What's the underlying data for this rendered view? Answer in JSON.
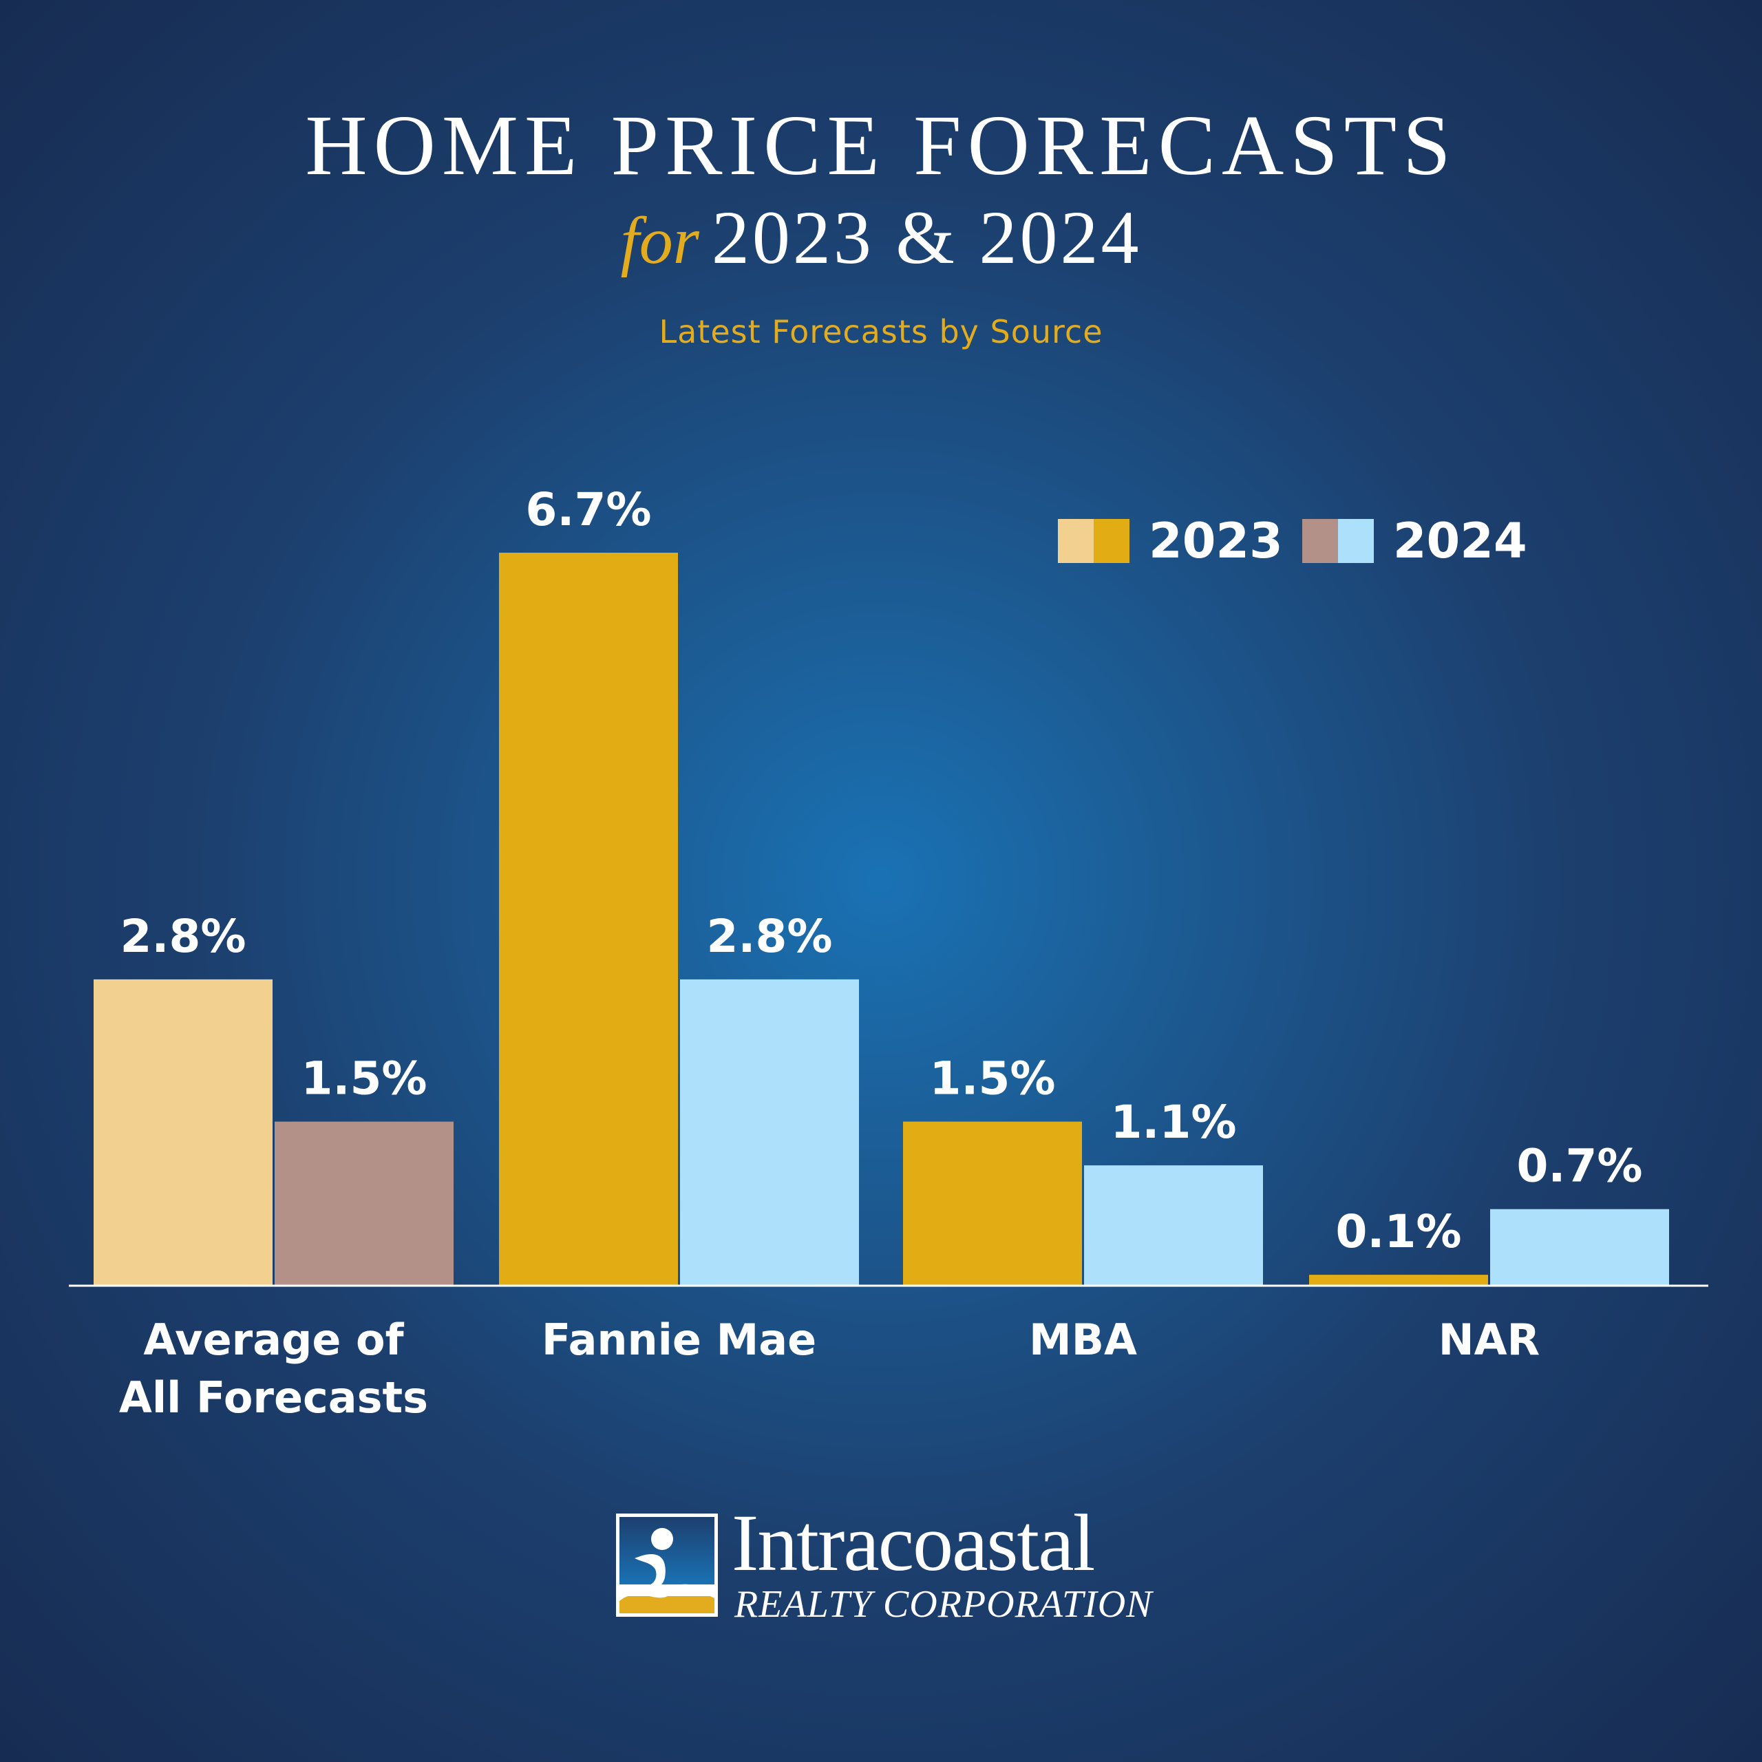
{
  "title": {
    "main": "HOME PRICE FORECASTS",
    "for_word": "for",
    "years": "2023 & 2024",
    "tagline": "Latest Forecasts by Source"
  },
  "legend": {
    "items": [
      {
        "label": "2023",
        "colors": [
          "#f2d08f",
          "#e2ac14"
        ]
      },
      {
        "label": "2024",
        "colors": [
          "#b39189",
          "#ace0fb"
        ]
      }
    ]
  },
  "logo": {
    "name": "Intracoastal",
    "subtitle": "REALTY CORPORATION"
  },
  "colors": {
    "background_center": "#1a72b4",
    "background_edge": "#172c52",
    "accent_gold": "#e2ac1e",
    "axis": "#ffffff"
  },
  "chart_data": {
    "type": "bar",
    "title": "HOME PRICE FORECASTS for 2023 & 2024",
    "subtitle": "Latest Forecasts by Source",
    "categories": [
      [
        "Average of",
        "All Forecasts"
      ],
      [
        "Fannie Mae"
      ],
      [
        "MBA"
      ],
      [
        "NAR"
      ]
    ],
    "series": [
      {
        "name": "2023",
        "values": [
          2.8,
          6.7,
          1.5,
          0.1
        ],
        "labels": [
          "2.8%",
          "6.7%",
          "1.5%",
          "0.1%"
        ],
        "colors": [
          "#f2d08f",
          "#e2ac14",
          "#e2ac14",
          "#e2ac14"
        ]
      },
      {
        "name": "2024",
        "values": [
          1.5,
          2.8,
          1.1,
          0.7
        ],
        "labels": [
          "1.5%",
          "2.8%",
          "1.1%",
          "0.7%"
        ],
        "colors": [
          "#b39189",
          "#ace0fb",
          "#ace0fb",
          "#ace0fb"
        ]
      }
    ],
    "ylim": [
      0,
      6.7
    ],
    "grid": false,
    "legend_position": "top-right",
    "xlabel": "",
    "ylabel": ""
  }
}
